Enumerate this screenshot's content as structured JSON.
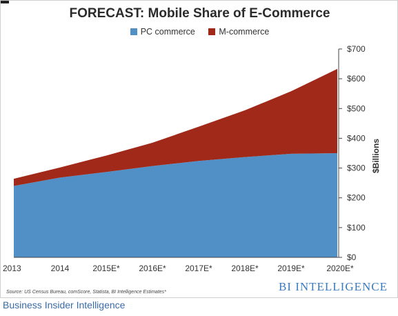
{
  "chart_data": {
    "type": "area",
    "stacked": true,
    "title": "FORECAST: Mobile Share of E-Commerce",
    "ylabel": "$Billions",
    "xlabel": "",
    "categories": [
      "2013",
      "2014",
      "2015E*",
      "2016E*",
      "2017E*",
      "2018E*",
      "2019E*",
      "2020E*"
    ],
    "series": [
      {
        "name": "PC commerce",
        "color": "#5090c6",
        "values": [
          240,
          268,
          287,
          307,
          324,
          337,
          348,
          350
        ]
      },
      {
        "name": "M-commerce",
        "color": "#a0291a",
        "values": [
          24,
          34,
          55,
          78,
          115,
          157,
          210,
          283
        ]
      }
    ],
    "ylim": [
      0,
      700
    ],
    "yticks": [
      0,
      100,
      200,
      300,
      400,
      500,
      600,
      700
    ],
    "ytick_labels": [
      "$0",
      "$100",
      "$200",
      "$300",
      "$400",
      "$500",
      "$600",
      "$700"
    ],
    "legend_position": "top-center",
    "grid": false
  },
  "source_note": "Source: US Census Bureau, comScore, Statista, BI Intelligence Estimates*",
  "brand": "BI INTELLIGENCE",
  "caption": "Business Insider Intelligence"
}
